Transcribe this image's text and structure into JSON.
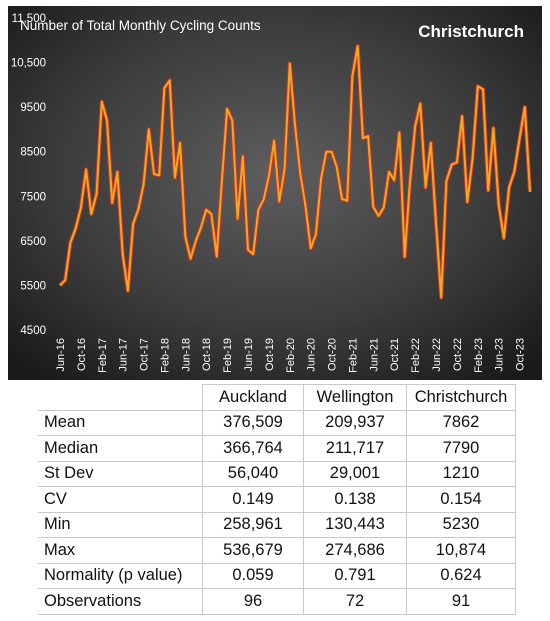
{
  "chart_data": {
    "type": "line",
    "title": "Christchurch",
    "ylabel": "Number of Total Monthly Cycling Counts",
    "xlabel": "",
    "ylim": [
      4500,
      11500
    ],
    "yticks": [
      "11,500",
      "10,500",
      "9500",
      "8500",
      "7500",
      "6500",
      "5500",
      "4500"
    ],
    "ytick_values": [
      11500,
      10500,
      9500,
      8500,
      7500,
      6500,
      5500,
      4500
    ],
    "xticks": [
      "Jun-16",
      "Oct-16",
      "Feb-17",
      "Jun-17",
      "Oct-17",
      "Feb-18",
      "Jun-18",
      "Oct-18",
      "Feb-19",
      "Jun-19",
      "Oct-19",
      "Feb-20",
      "Jun-20",
      "Oct-20",
      "Feb-21",
      "Jun-21",
      "Oct-21",
      "Feb-22",
      "Jun-22",
      "Oct-22",
      "Feb-23",
      "Jun-23",
      "Oct-23"
    ],
    "grid": false,
    "series": [
      {
        "name": "",
        "color": "#f5a623",
        "values": [
          5500,
          5620,
          6460,
          6780,
          7240,
          8100,
          7100,
          7560,
          9620,
          9200,
          7350,
          8050,
          6200,
          5380,
          6880,
          7200,
          7770,
          9000,
          8000,
          7970,
          9930,
          10100,
          7920,
          8700,
          6600,
          6100,
          6500,
          6800,
          7200,
          7100,
          6150,
          7850,
          9460,
          9200,
          7000,
          8400,
          6300,
          6200,
          7200,
          7430,
          7950,
          8750,
          7380,
          8120,
          10480,
          9100,
          8020,
          7300,
          6330,
          6650,
          7900,
          8500,
          8500,
          8150,
          7440,
          7400,
          10200,
          10870,
          8800,
          8850,
          7260,
          7060,
          7250,
          8050,
          7860,
          8930,
          6140,
          7800,
          9060,
          9580,
          7700,
          8700,
          6900,
          5230,
          7840,
          8210,
          8260,
          9300,
          7370,
          8350,
          9970,
          9900,
          7630,
          9030,
          7320,
          6560,
          7700,
          8050,
          8800,
          9500,
          7600
        ]
      }
    ]
  },
  "stats": {
    "columns": [
      "Auckland",
      "Wellington",
      "Christchurch"
    ],
    "rows": [
      {
        "label": "Mean",
        "values": [
          "376,509",
          "209,937",
          "7862"
        ]
      },
      {
        "label": "Median",
        "values": [
          "366,764",
          "211,717",
          "7790"
        ]
      },
      {
        "label": "St Dev",
        "values": [
          "56,040",
          "29,001",
          "1210"
        ]
      },
      {
        "label": "CV",
        "values": [
          "0.149",
          "0.138",
          "0.154"
        ]
      },
      {
        "label": "Min",
        "values": [
          "258,961",
          "130,443",
          "5230"
        ]
      },
      {
        "label": "Max",
        "values": [
          "536,679",
          "274,686",
          "10,874"
        ]
      },
      {
        "label": "Normality (p value)",
        "values": [
          "0.059",
          "0.791",
          "0.624"
        ]
      },
      {
        "label": "Observations",
        "values": [
          "96",
          "72",
          "91"
        ]
      }
    ]
  },
  "colors": {
    "chart_bg_center": "#5a5a5a",
    "chart_bg_edge": "#1c1c1c",
    "line_outer": "#c0392b",
    "line_inner": "#f5a623",
    "text_light": "#ffffff"
  }
}
